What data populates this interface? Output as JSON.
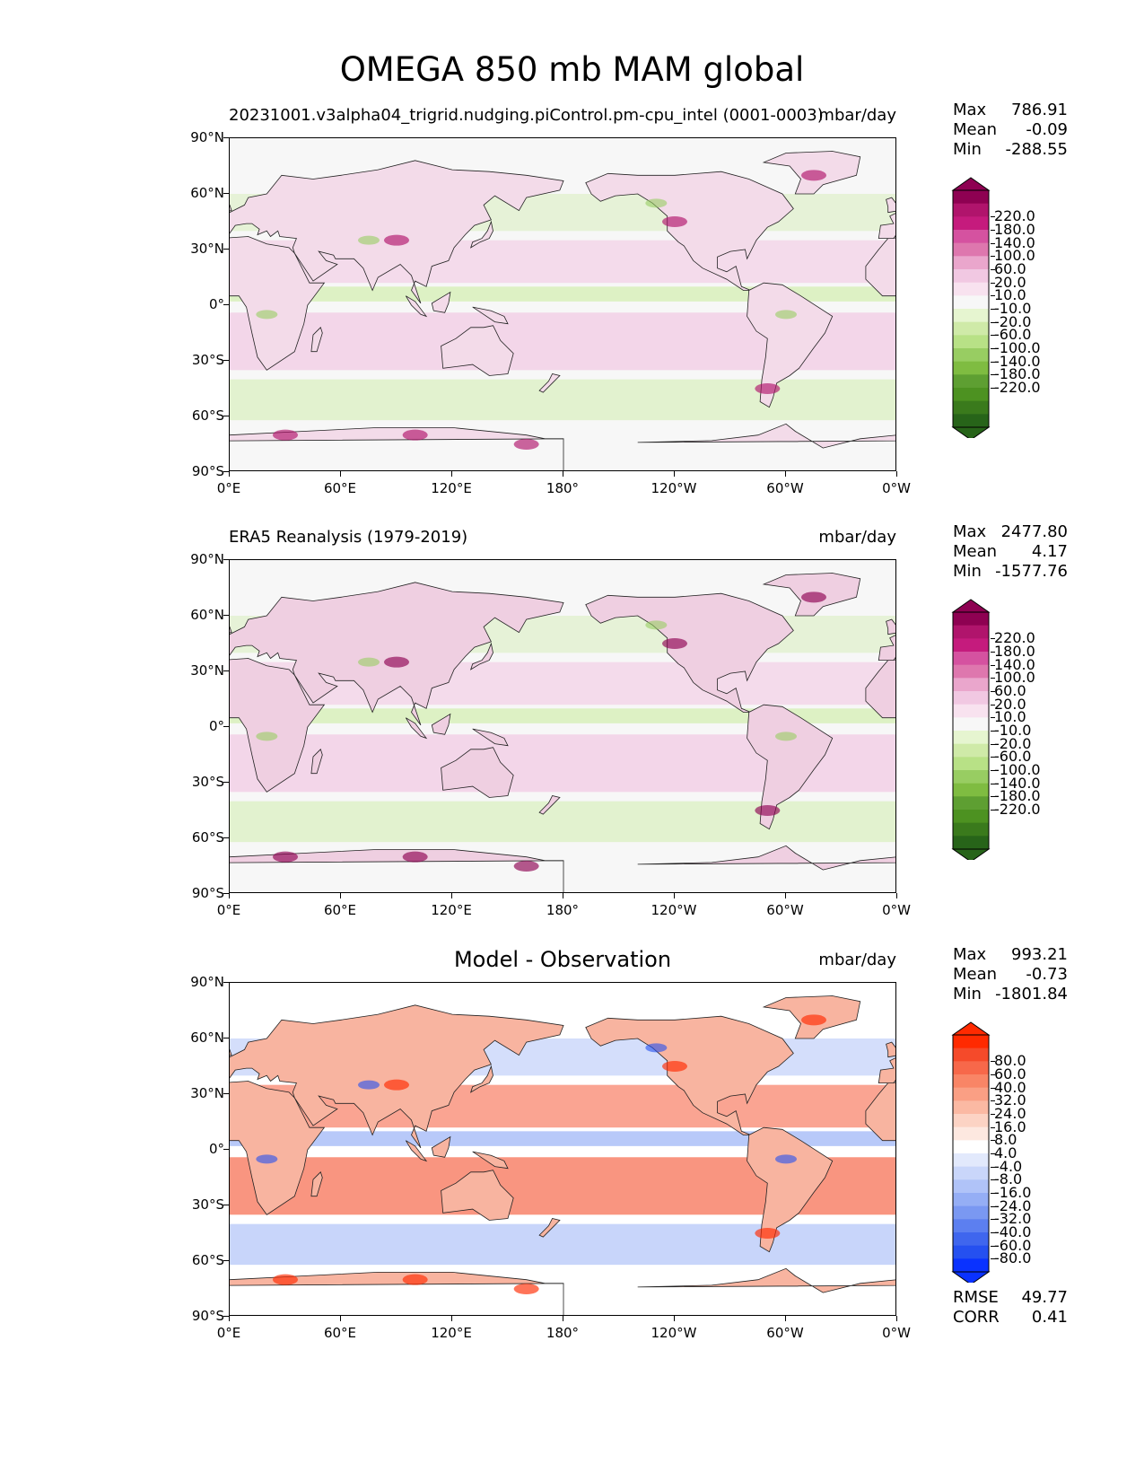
{
  "title": "OMEGA 850 mb MAM global",
  "axes": {
    "yticks": [
      "90°N",
      "60°N",
      "30°N",
      "0°",
      "30°S",
      "60°S",
      "90°S"
    ],
    "xticks": [
      "0°E",
      "60°E",
      "120°E",
      "180°",
      "120°W",
      "60°W",
      "0°W"
    ]
  },
  "panels": [
    {
      "left_title": "20231001.v3alpha04_trigrid.nudging.piControl.pm-cpu_intel (0001-0003)",
      "center_title": "",
      "units": "mbar/day",
      "stats": [
        [
          "Max",
          "786.91"
        ],
        [
          "Mean",
          "-0.09"
        ],
        [
          "Min",
          "-288.55"
        ]
      ],
      "colorbar": {
        "labels": [
          "220.0",
          "180.0",
          "140.0",
          "100.0",
          "60.0",
          "20.0",
          "10.0",
          "-10.0",
          "-20.0",
          "-60.0",
          "-100.0",
          "-140.0",
          "-180.0",
          "-220.0"
        ],
        "colors": [
          "#8e0152",
          "#b0146c",
          "#c51b7d",
          "#d552a0",
          "#de77ae",
          "#eaa6cc",
          "#f1c8e2",
          "#f8e2ef",
          "#f7f7f7",
          "#e6f5d0",
          "#cfeaa8",
          "#b8e186",
          "#98cd62",
          "#7fbc41",
          "#5e9f32",
          "#4d9221",
          "#3a7a1c",
          "#276419"
        ]
      }
    },
    {
      "left_title": "ERA5 Reanalysis (1979-2019)",
      "center_title": "",
      "units": "mbar/day",
      "stats": [
        [
          "Max",
          "2477.80"
        ],
        [
          "Mean",
          "4.17"
        ],
        [
          "Min",
          "-1577.76"
        ]
      ],
      "colorbar": {
        "labels": [
          "220.0",
          "180.0",
          "140.0",
          "100.0",
          "60.0",
          "20.0",
          "10.0",
          "-10.0",
          "-20.0",
          "-60.0",
          "-100.0",
          "-140.0",
          "-180.0",
          "-220.0"
        ],
        "colors": [
          "#8e0152",
          "#b0146c",
          "#c51b7d",
          "#d552a0",
          "#de77ae",
          "#eaa6cc",
          "#f1c8e2",
          "#f8e2ef",
          "#f7f7f7",
          "#e6f5d0",
          "#cfeaa8",
          "#b8e186",
          "#98cd62",
          "#7fbc41",
          "#5e9f32",
          "#4d9221",
          "#3a7a1c",
          "#276419"
        ]
      }
    },
    {
      "left_title": "",
      "center_title": "Model - Observation",
      "units": "mbar/day",
      "stats": [
        [
          "Max",
          "993.21"
        ],
        [
          "Mean",
          "-0.73"
        ],
        [
          "Min",
          "-1801.84"
        ]
      ],
      "extra_stats": [
        [
          "RMSE",
          "49.77"
        ],
        [
          "CORR",
          "0.41"
        ]
      ],
      "colorbar": {
        "labels": [
          "80.0",
          "60.0",
          "40.0",
          "32.0",
          "24.0",
          "16.0",
          "8.0",
          "4.0",
          "-4.0",
          "-8.0",
          "-16.0",
          "-24.0",
          "-32.0",
          "-40.0",
          "-60.0",
          "-80.0"
        ],
        "colors": [
          "#ff2a00",
          "#f54a2a",
          "#f7684a",
          "#f98566",
          "#fa9f84",
          "#fbb9a3",
          "#fcd3c4",
          "#fde8e0",
          "#ffffff",
          "#e2e9fc",
          "#c9d6fa",
          "#b0c3f8",
          "#95aef5",
          "#7a98f2",
          "#5c7ff0",
          "#3f66ee",
          "#2550f0",
          "#0a32ff"
        ]
      }
    }
  ],
  "map_colors": {
    "panel1": {
      "ocean": "#f7f7f7",
      "land": "#f3dbe9",
      "posband": "#f1c8e2",
      "negband": "#d9efbe",
      "strongpos": "#b0146c",
      "strongneg": "#98cd62"
    },
    "panel2": {
      "ocean": "#f7f7f7",
      "land": "#efcfe1",
      "posband": "#f1c8e2",
      "negband": "#d9efbe",
      "strongpos": "#8e0152",
      "strongneg": "#98cd62"
    },
    "panel3": {
      "ocean": "#ffffff",
      "land": "#f8b4a0",
      "posband": "#f7684a",
      "negband": "#b0c3f8",
      "strongpos": "#ff2a00",
      "strongneg": "#2550f0"
    }
  }
}
